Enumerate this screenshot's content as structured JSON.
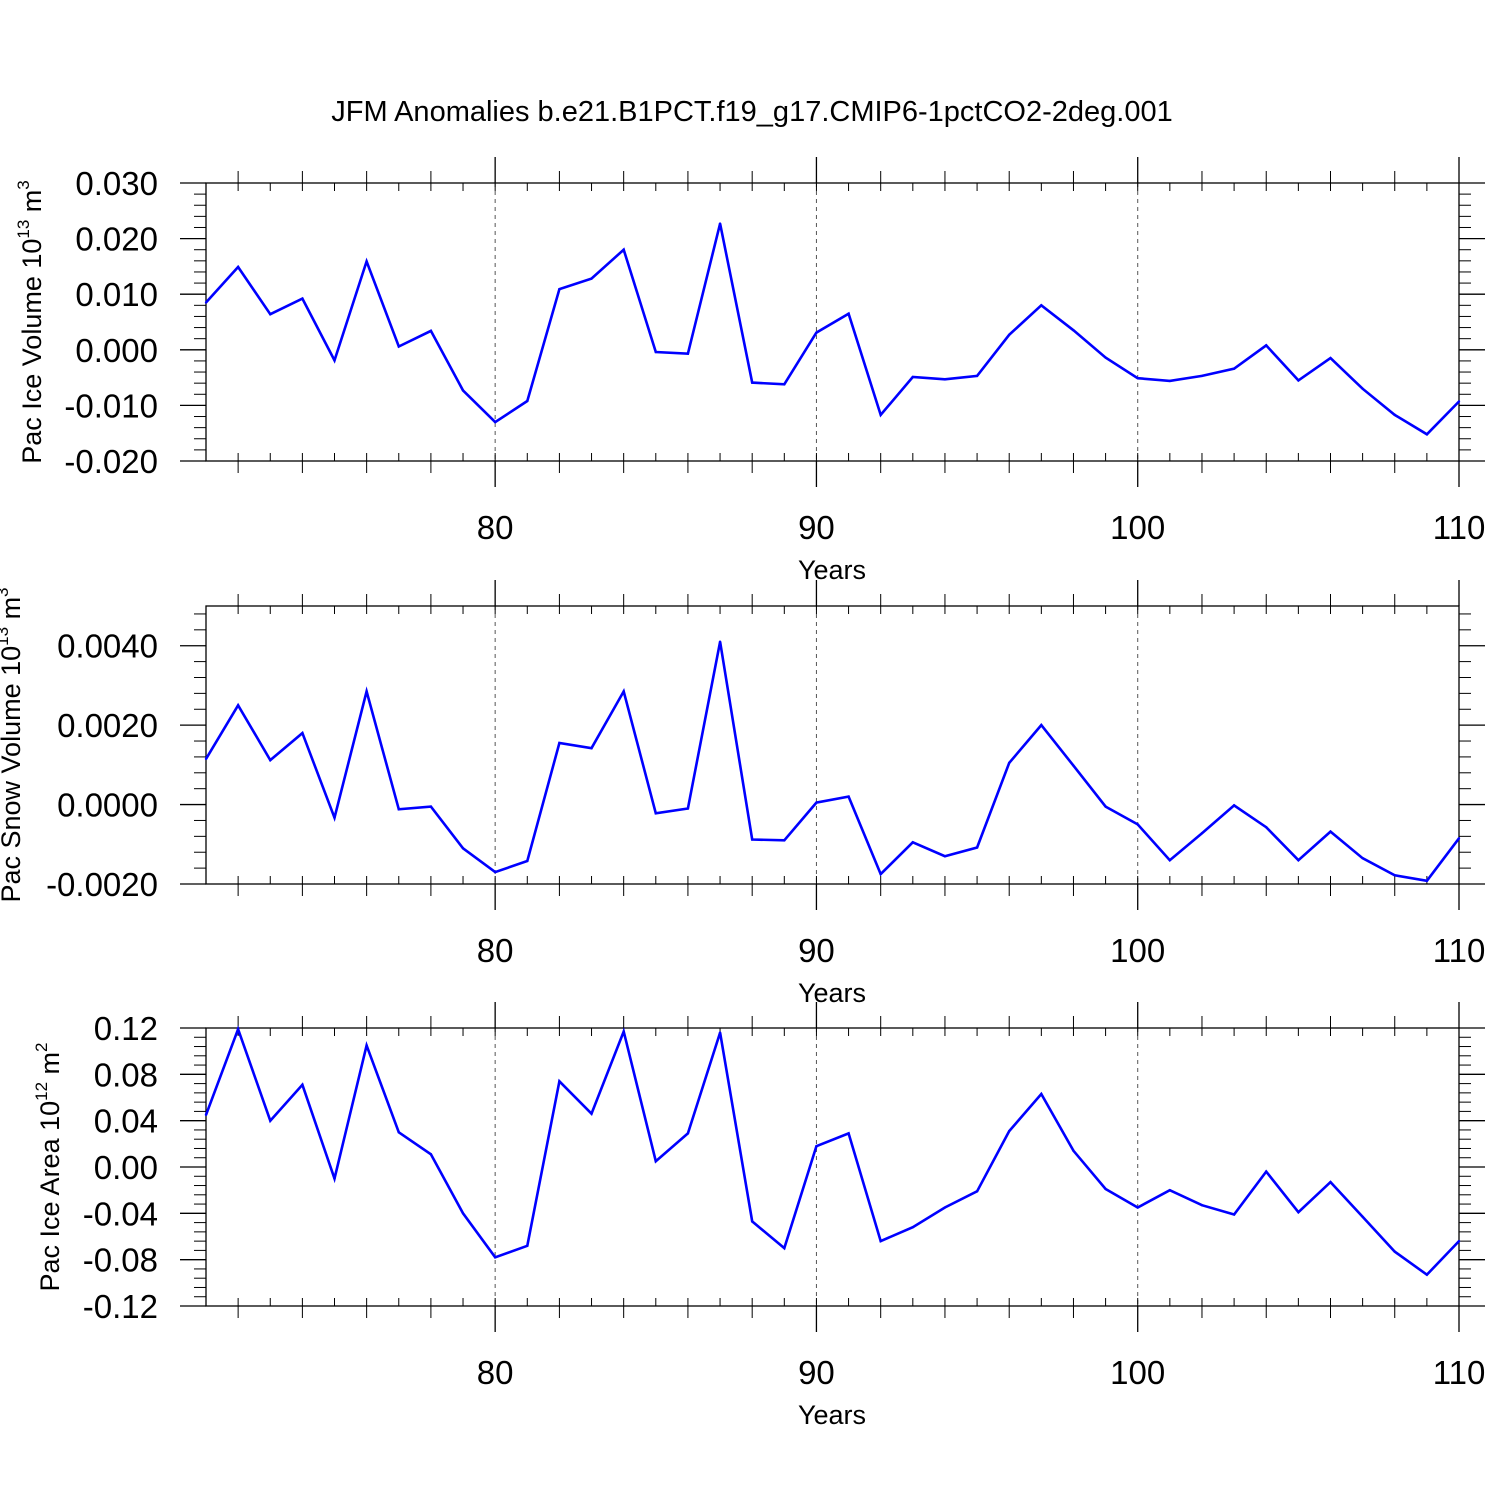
{
  "title": "JFM Anomalies b.e21.B1PCT.f19_g17.CMIP6-1pctCO2-2deg.001",
  "line_color": "#0000ff",
  "chart_data": [
    {
      "type": "line",
      "ylabel_parts": [
        "Pac Ice Volume 10",
        "13",
        " m",
        "3"
      ],
      "xlabel": "Years",
      "xlim": [
        71,
        110
      ],
      "ylim": [
        -0.02,
        0.03
      ],
      "x_ticks": [
        80,
        90,
        100,
        110
      ],
      "y_ticks": [
        -0.02,
        -0.01,
        0.0,
        0.01,
        0.02,
        0.03
      ],
      "y_tick_labels": [
        "-0.020",
        "-0.010",
        "0.000",
        "0.010",
        "0.020",
        "0.030"
      ],
      "x": [
        71,
        72,
        73,
        74,
        75,
        76,
        77,
        78,
        79,
        80,
        81,
        82,
        83,
        84,
        85,
        86,
        87,
        88,
        89,
        90,
        91,
        92,
        93,
        94,
        95,
        96,
        97,
        98,
        99,
        100,
        101,
        102,
        103,
        104,
        105,
        106,
        107,
        108,
        109,
        110
      ],
      "values": [
        0.0085,
        0.0149,
        0.0064,
        0.0092,
        -0.0019,
        0.0159,
        0.0006,
        0.0034,
        -0.0073,
        -0.013,
        -0.0092,
        0.0109,
        0.0128,
        0.018,
        -0.0004,
        -0.0007,
        0.0227,
        -0.0059,
        -0.0062,
        0.0031,
        0.0065,
        -0.0117,
        -0.0049,
        -0.0053,
        -0.0047,
        0.0027,
        0.008,
        0.0035,
        -0.0014,
        -0.0051,
        -0.0056,
        -0.0047,
        -0.0034,
        0.0008,
        -0.0055,
        -0.0015,
        -0.007,
        -0.0117,
        -0.0152,
        -0.0093
      ]
    },
    {
      "type": "line",
      "ylabel_parts": [
        "Pac Snow Volume 10",
        "13",
        " m",
        "3"
      ],
      "xlabel": "Years",
      "xlim": [
        71,
        110
      ],
      "ylim": [
        -0.002,
        0.005
      ],
      "x_ticks": [
        80,
        90,
        100,
        110
      ],
      "y_ticks": [
        -0.002,
        0.0,
        0.002,
        0.004
      ],
      "y_tick_labels": [
        "-0.0020",
        "0.0000",
        "0.0020",
        "0.0040"
      ],
      "x": [
        71,
        72,
        73,
        74,
        75,
        76,
        77,
        78,
        79,
        80,
        81,
        82,
        83,
        84,
        85,
        86,
        87,
        88,
        89,
        90,
        91,
        92,
        93,
        94,
        95,
        96,
        97,
        98,
        99,
        100,
        101,
        102,
        103,
        104,
        105,
        106,
        107,
        108,
        109,
        110
      ],
      "values": [
        0.00115,
        0.0025,
        0.00112,
        0.0018,
        -0.00033,
        0.00285,
        -0.00012,
        -5e-05,
        -0.0011,
        -0.0017,
        -0.00142,
        0.00155,
        0.00142,
        0.00285,
        -0.00022,
        -0.0001,
        0.0041,
        -0.00088,
        -0.0009,
        5e-05,
        0.0002,
        -0.00175,
        -0.00095,
        -0.0013,
        -0.00108,
        0.00105,
        0.002,
        0.00098,
        -5e-05,
        -0.0005,
        -0.0014,
        -0.00072,
        -2e-05,
        -0.00057,
        -0.0014,
        -0.00068,
        -0.00135,
        -0.00178,
        -0.00192,
        -0.00085
      ]
    },
    {
      "type": "line",
      "ylabel_parts": [
        "Pac Ice Area 10",
        "12",
        " m",
        "2"
      ],
      "xlabel": "Years",
      "xlim": [
        71,
        110
      ],
      "ylim": [
        -0.12,
        0.12
      ],
      "x_ticks": [
        80,
        90,
        100,
        110
      ],
      "y_ticks": [
        -0.12,
        -0.08,
        -0.04,
        0.0,
        0.04,
        0.08,
        0.12
      ],
      "y_tick_labels": [
        "-0.12",
        "-0.08",
        "-0.04",
        "0.00",
        "0.04",
        "0.08",
        "0.12"
      ],
      "x": [
        71,
        72,
        73,
        74,
        75,
        76,
        77,
        78,
        79,
        80,
        81,
        82,
        83,
        84,
        85,
        86,
        87,
        88,
        89,
        90,
        91,
        92,
        93,
        94,
        95,
        96,
        97,
        98,
        99,
        100,
        101,
        102,
        103,
        104,
        105,
        106,
        107,
        108,
        109,
        110
      ],
      "values": [
        0.045,
        0.119,
        0.04,
        0.071,
        -0.01,
        0.105,
        0.03,
        0.011,
        -0.04,
        -0.078,
        -0.068,
        0.074,
        0.046,
        0.117,
        0.005,
        0.029,
        0.116,
        -0.047,
        -0.07,
        0.018,
        0.029,
        -0.064,
        -0.052,
        -0.035,
        -0.021,
        0.031,
        0.063,
        0.014,
        -0.019,
        -0.035,
        -0.02,
        -0.033,
        -0.041,
        -0.004,
        -0.039,
        -0.013,
        -0.043,
        -0.073,
        -0.093,
        -0.064
      ]
    }
  ]
}
